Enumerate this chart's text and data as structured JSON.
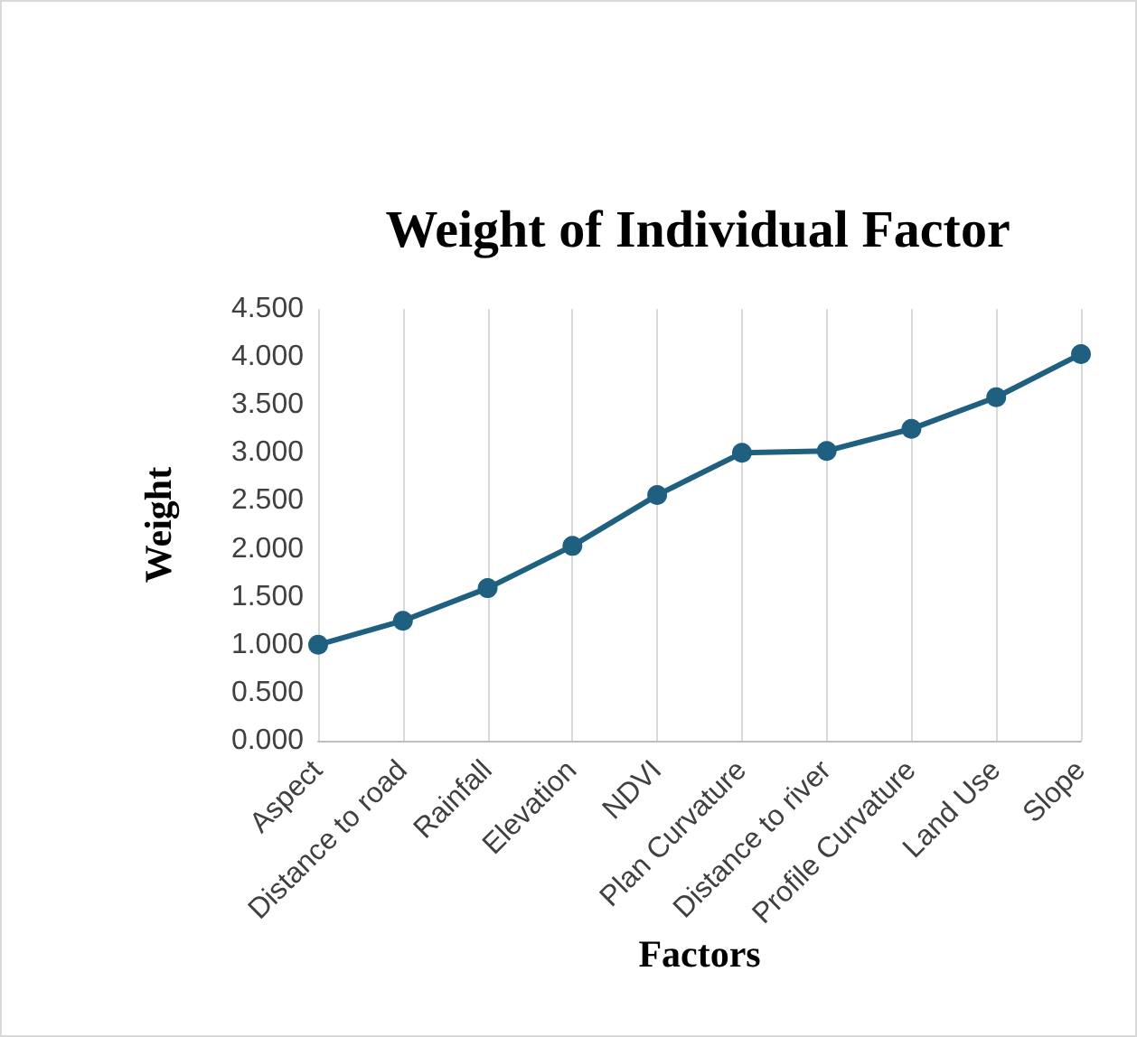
{
  "chart_data": {
    "type": "line",
    "title": "Weight of Individual Factor",
    "xlabel": "Factors",
    "ylabel": "Weight",
    "categories": [
      "Aspect",
      "Distance to road",
      "Rainfall",
      "Elevation",
      "NDVI",
      "Plan Curvature",
      "Distance to river",
      "Profile Curvature",
      "Land Use",
      "Slope"
    ],
    "series": [
      {
        "color": "#1f5f7f",
        "values": [
          1.0,
          1.25,
          1.59,
          2.03,
          2.56,
          3.0,
          3.02,
          3.25,
          3.58,
          4.03
        ]
      }
    ],
    "ylim": [
      0,
      4.5
    ],
    "yticks": [
      {
        "value": 0,
        "label": "0.000"
      },
      {
        "value": 0.5,
        "label": "0.500"
      },
      {
        "value": 1,
        "label": "1.000"
      },
      {
        "value": 1.5,
        "label": "1.500"
      },
      {
        "value": 2,
        "label": "2.000"
      },
      {
        "value": 2.5,
        "label": "2.500"
      },
      {
        "value": 3,
        "label": "3.000"
      },
      {
        "value": 3.5,
        "label": "3.500"
      },
      {
        "value": 4,
        "label": "4.000"
      },
      {
        "value": 4.5,
        "label": "4.500"
      }
    ],
    "grid": "x",
    "marker": "circle",
    "line_style": "solid"
  }
}
